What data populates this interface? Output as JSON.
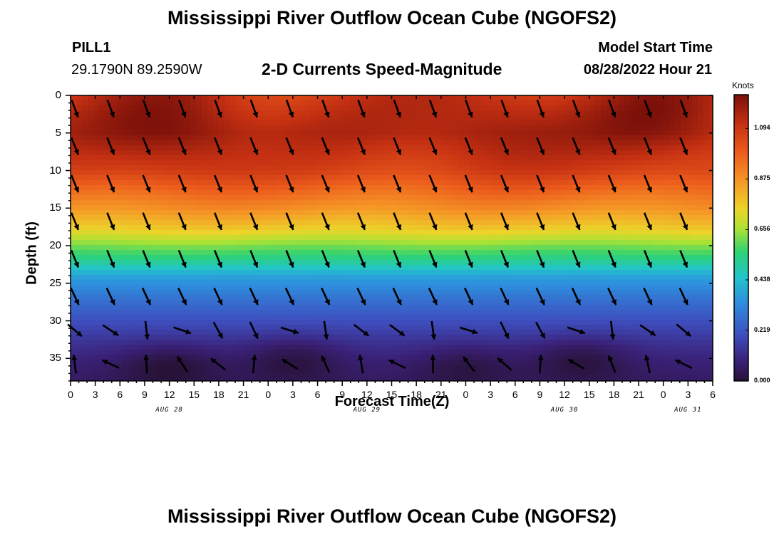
{
  "header": {
    "title": "Mississippi River Outflow Ocean Cube (NGOFS2)",
    "station_id": "PILL1",
    "station_coords": "29.1790N  89.2590W",
    "subtitle": "2-D Currents Speed-Magnitude",
    "model_start_label": "Model Start Time",
    "model_start_value": "08/28/2022 Hour 21"
  },
  "footer": {
    "title": "Mississippi River Outflow Ocean Cube (NGOFS2)"
  },
  "colorbar": {
    "unit": "Knots",
    "ticks": [
      "1.094",
      "0.875",
      "0.656",
      "0.438",
      "0.219",
      "0.000"
    ]
  },
  "chart_data": {
    "type": "heatmap",
    "title": "2-D Currents Speed-Magnitude",
    "xlabel": "Forecast Time(Z)",
    "ylabel": "Depth (ft)",
    "x_tick_labels": [
      "0",
      "3",
      "6",
      "9",
      "12",
      "15",
      "18",
      "21",
      "0",
      "3",
      "6",
      "9",
      "12",
      "15",
      "18",
      "21",
      "0",
      "3",
      "6",
      "9",
      "12",
      "15",
      "18",
      "21",
      "0",
      "3",
      "6"
    ],
    "x_range_hours": [
      0,
      78
    ],
    "date_labels": [
      {
        "label": "AUG 28",
        "hour": 12
      },
      {
        "label": "AUG 29",
        "hour": 36
      },
      {
        "label": "AUG 30",
        "hour": 60
      },
      {
        "label": "AUG 31",
        "hour": 75
      }
    ],
    "y_ticks": [
      0,
      5,
      10,
      15,
      20,
      25,
      30,
      35
    ],
    "ylim": [
      0,
      38
    ],
    "y_inverted": true,
    "color_scale": {
      "min": 0.0,
      "max": 1.24,
      "unit": "Knots",
      "palette": "rainbow"
    },
    "speed_by_depth": [
      {
        "depth": 0,
        "speed": 1.08
      },
      {
        "depth": 5,
        "speed": 1.12
      },
      {
        "depth": 10,
        "speed": 1.05
      },
      {
        "depth": 15,
        "speed": 0.88
      },
      {
        "depth": 18,
        "speed": 0.75
      },
      {
        "depth": 20,
        "speed": 0.62
      },
      {
        "depth": 22,
        "speed": 0.52
      },
      {
        "depth": 24,
        "speed": 0.38
      },
      {
        "depth": 27,
        "speed": 0.28
      },
      {
        "depth": 30,
        "speed": 0.2
      },
      {
        "depth": 33,
        "speed": 0.13
      },
      {
        "depth": 36,
        "speed": 0.08
      },
      {
        "depth": 38,
        "speed": 0.06
      }
    ],
    "near_surface_max": [
      {
        "hour": 13,
        "depth": 4,
        "speed": 1.24
      },
      {
        "hour": 51,
        "depth": 4,
        "speed": 1.2
      },
      {
        "hour": 72,
        "depth": 2,
        "speed": 1.2
      }
    ],
    "bottom_minima": [
      {
        "hour": 12,
        "depth": 36,
        "speed": 0.0
      },
      {
        "hour": 27,
        "depth": 35,
        "speed": 0.02
      },
      {
        "hour": 48,
        "depth": 36,
        "speed": 0.02
      },
      {
        "hour": 62,
        "depth": 35,
        "speed": 0.02
      }
    ],
    "vector_rows": [
      {
        "depth": 1,
        "dir_deg": 160
      },
      {
        "depth": 6,
        "dir_deg": 158
      },
      {
        "depth": 11,
        "dir_deg": 158
      },
      {
        "depth": 16,
        "dir_deg": 158
      },
      {
        "depth": 21,
        "dir_deg": 158
      },
      {
        "depth": 26,
        "dir_deg": 155
      },
      {
        "depth": 30.5,
        "dir_deg": 140
      },
      {
        "depth": 35,
        "dir_deg": 330
      }
    ]
  }
}
